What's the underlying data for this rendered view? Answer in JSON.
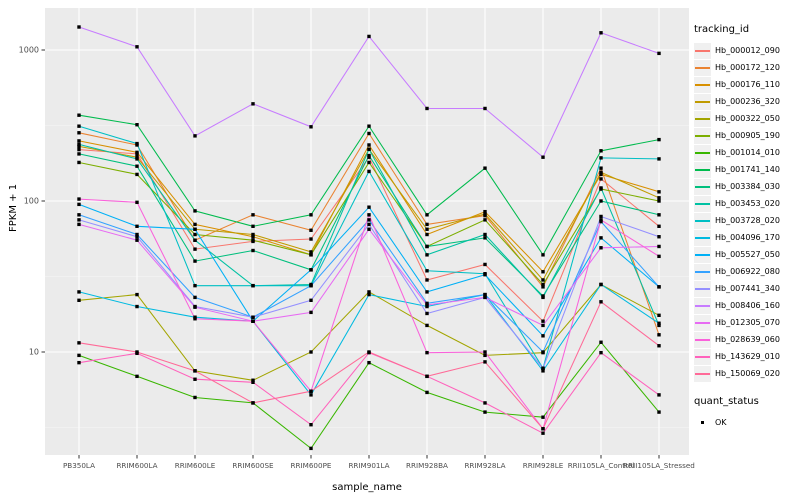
{
  "figure": {
    "background": "#FFFFFF",
    "panel_bg": "#EBEBEB",
    "grid_major_color": "#FFFFFF",
    "grid_minor_color": "#F7F7F7",
    "tick_mark_color": "#333333",
    "tick_label_color": "#4D4D4D",
    "point_color": "#000000"
  },
  "chart_data": {
    "type": "line",
    "title": "",
    "xlabel": "sample_name",
    "ylabel": "FPKM + 1",
    "y_scale": "log10",
    "y_ticks": [
      1000,
      100,
      10
    ],
    "y_tick_labels": [
      "1000",
      "100",
      "10"
    ],
    "y_minor_ticks": [
      316.2,
      31.62,
      3.162
    ],
    "ylim": [
      2.0,
      1900
    ],
    "grid": true,
    "legend_position": "right",
    "categories": [
      "PB350LA",
      "RRIM600LA",
      "RRIM600LE",
      "RRIM600SE",
      "RRIM600PE",
      "RRIM901LA",
      "RRIM928BA",
      "RRIM928LA",
      "RRIM928LE",
      "RRII105LA_Control",
      "RRII105LA_Stressed"
    ],
    "series": [
      {
        "name": "Hb_000012_090",
        "color": "#F8766D",
        "values": [
          219,
          205,
          48,
          54,
          56,
          195,
          30,
          38,
          16,
          140,
          68
        ]
      },
      {
        "name": "Hb_000172_120",
        "color": "#EA8331",
        "values": [
          283,
          235,
          55,
          81,
          64,
          280,
          70,
          80,
          27,
          165,
          13
        ]
      },
      {
        "name": "Hb_000176_110",
        "color": "#D89000",
        "values": [
          250,
          210,
          70,
          58,
          44,
          235,
          60,
          85,
          34,
          150,
          115
        ]
      },
      {
        "name": "Hb_000236_320",
        "color": "#C09B00",
        "values": [
          230,
          195,
          65,
          60,
          46,
          220,
          65,
          82,
          30,
          155,
          105
        ]
      },
      {
        "name": "Hb_000322_050",
        "color": "#A3A500",
        "values": [
          22,
          24,
          7.5,
          6.5,
          10,
          25,
          15,
          9.5,
          9.9,
          28,
          17.5
        ]
      },
      {
        "name": "Hb_000905_190",
        "color": "#7CAE00",
        "values": [
          180,
          150,
          60,
          55,
          44,
          180,
          50,
          75,
          28,
          120,
          100
        ]
      },
      {
        "name": "Hb_001014_010",
        "color": "#39B600",
        "values": [
          9.5,
          6.9,
          5.0,
          4.6,
          2.3,
          8.5,
          5.4,
          4.0,
          3.7,
          11.6,
          4.0
        ]
      },
      {
        "name": "Hb_001741_140",
        "color": "#00BB4E",
        "values": [
          370,
          320,
          86,
          68,
          81,
          313,
          81,
          165,
          44,
          215,
          255
        ]
      },
      {
        "name": "Hb_003384_030",
        "color": "#00BF7D",
        "values": [
          205,
          170,
          40,
          47,
          35,
          200,
          50,
          57,
          23.5,
          100,
          81
        ]
      },
      {
        "name": "Hb_003453_020",
        "color": "#00C1A3",
        "values": [
          237,
          190,
          55,
          27.5,
          28,
          220,
          44,
          60,
          23,
          122,
          15
        ]
      },
      {
        "name": "Hb_003728_020",
        "color": "#00BFC4",
        "values": [
          313,
          240,
          27.5,
          27.5,
          27.5,
          157,
          34.5,
          33,
          7.8,
          193,
          190
        ]
      },
      {
        "name": "Hb_004096_170",
        "color": "#00BAE0",
        "values": [
          25,
          20,
          17,
          16,
          5.2,
          24,
          20,
          24,
          7.5,
          28,
          15.5
        ]
      },
      {
        "name": "Hb_005527_050",
        "color": "#00B0F6",
        "values": [
          95,
          68,
          65,
          16,
          35,
          91,
          25,
          32.5,
          12.8,
          57,
          27
        ]
      },
      {
        "name": "Hb_006922_080",
        "color": "#35A2FF",
        "values": [
          81,
          60,
          23,
          17,
          27.5,
          75,
          21,
          24,
          10,
          73,
          27
        ]
      },
      {
        "name": "Hb_007441_340",
        "color": "#9590FF",
        "values": [
          75,
          58,
          20,
          17,
          22,
          70,
          18,
          23,
          7.8,
          79,
          58
        ]
      },
      {
        "name": "Hb_008406_160",
        "color": "#C77CFF",
        "values": [
          1420,
          1050,
          270,
          440,
          310,
          1230,
          410,
          410,
          195,
          1300,
          950
        ]
      },
      {
        "name": "Hb_012305_070",
        "color": "#E76BF3",
        "values": [
          70,
          55,
          19.8,
          16,
          18.3,
          65,
          20.5,
          23,
          15,
          49,
          50
        ]
      },
      {
        "name": "Hb_028639_060",
        "color": "#FA62DB",
        "values": [
          103,
          98,
          16.6,
          16,
          5.5,
          81,
          9.9,
          10,
          3.1,
          75,
          43
        ]
      },
      {
        "name": "Hb_143629_010",
        "color": "#FF62BC",
        "values": [
          8.5,
          9.8,
          6.6,
          6.3,
          3.3,
          9.9,
          6.9,
          4.6,
          2.9,
          9.9,
          5.2
        ]
      },
      {
        "name": "Hb_150069_020",
        "color": "#FF6A98",
        "values": [
          11.5,
          10,
          7.5,
          4.6,
          5.5,
          10,
          6.9,
          8.6,
          3.1,
          21.5,
          11
        ]
      }
    ],
    "legend": {
      "tracking_title": "tracking_id",
      "quant_title": "quant_status",
      "quant_items": [
        {
          "label": "OK",
          "shape": "square",
          "color": "#000000"
        }
      ]
    }
  }
}
